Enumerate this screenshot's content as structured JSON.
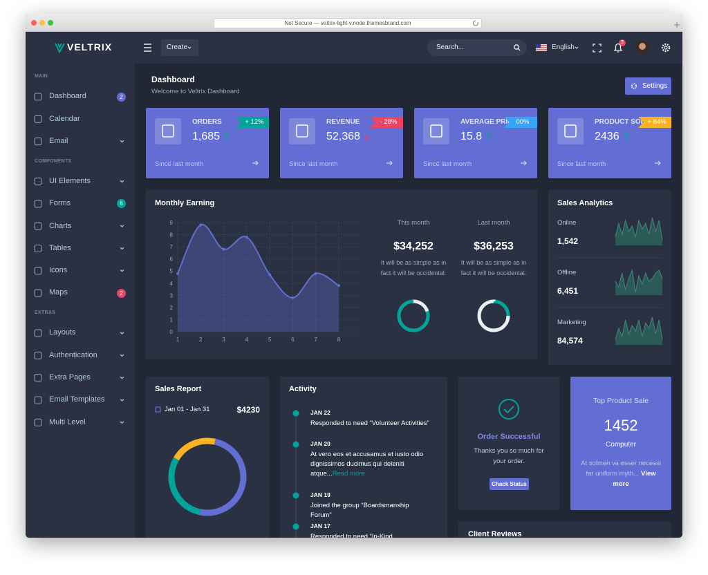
{
  "browser": {
    "address": "Not Secure — veltrix-light-v.node.themesbrand.com"
  },
  "brand": "VELTRIX",
  "topbar": {
    "create": "Create",
    "search": "Search...",
    "language": "English",
    "notifications": "3"
  },
  "sidebar": [
    {
      "heading": "MAIN",
      "items": [
        {
          "label": "Dashboard",
          "badge": "2",
          "badge_color": "#626ed4"
        },
        {
          "label": "Calendar"
        },
        {
          "label": "Email",
          "submenu": true
        }
      ]
    },
    {
      "heading": "COMPONENTS",
      "items": [
        {
          "label": "UI Elements",
          "submenu": true
        },
        {
          "label": "Forms",
          "badge": "6",
          "badge_color": "#02a499"
        },
        {
          "label": "Charts",
          "submenu": true
        },
        {
          "label": "Tables",
          "submenu": true
        },
        {
          "label": "Icons",
          "submenu": true
        },
        {
          "label": "Maps",
          "badge": "2",
          "badge_color": "#ec4561"
        }
      ]
    },
    {
      "heading": "EXTRAS",
      "items": [
        {
          "label": "Layouts",
          "submenu": true
        },
        {
          "label": "Authentication",
          "submenu": true
        },
        {
          "label": "Extra Pages",
          "submenu": true
        },
        {
          "label": "Email Templates",
          "submenu": true
        },
        {
          "label": "Multi Level",
          "submenu": true
        }
      ]
    }
  ],
  "page": {
    "title": "Dashboard",
    "subtitle": "Welcome to Veltrix Dashboard",
    "settings": "Settings"
  },
  "stats": [
    {
      "label": "ORDERS",
      "value": "1,685",
      "trend": "up",
      "change": "+ 12%",
      "change_color": "#02a499",
      "footer": "Since last month"
    },
    {
      "label": "REVENUE",
      "value": "52,368",
      "trend": "down",
      "change": "- 28%",
      "change_color": "#ec4561",
      "footer": "Since last month"
    },
    {
      "label": "AVERAGE PRICE",
      "value": "15.8",
      "trend": "up",
      "change": "00%",
      "change_color": "#38a4f8",
      "footer": "Since last month"
    },
    {
      "label": "PRODUCT SOLD",
      "value": "2436",
      "trend": "up",
      "change": "+ 84%",
      "change_color": "#f8b425",
      "footer": "Since last month"
    }
  ],
  "earning": {
    "title": "Monthly Earning",
    "summaries": [
      {
        "label": "This month",
        "value": "$34,252",
        "text": "It will be as simple as in fact it will be occidental."
      },
      {
        "label": "Last month",
        "value": "$36,253",
        "text": "It will be as simple as in fact it will be occidental."
      }
    ]
  },
  "analytics": {
    "title": "Sales Analytics",
    "rows": [
      {
        "label": "Online",
        "value": "1,542"
      },
      {
        "label": "Offline",
        "value": "6,451"
      },
      {
        "label": "Marketing",
        "value": "84,574"
      }
    ]
  },
  "sales_report": {
    "title": "Sales Report",
    "range": "Jan 01 - Jan 31",
    "total": "$4230"
  },
  "activity": {
    "title": "Activity",
    "items": [
      {
        "date": "JAN 22",
        "text": "Responded to need “Volunteer Activities”"
      },
      {
        "date": "JAN 20",
        "text": "At vero eos et accusamus et iusto odio dignissimos ducimus qui deleniti atque...",
        "link": "Read more"
      },
      {
        "date": "JAN 19",
        "text": "Joined the group “Boardsmanship Forum”"
      },
      {
        "date": "JAN 17",
        "text": "Responded to need “In-Kind Opportunity”"
      }
    ]
  },
  "order": {
    "title": "Order Successful",
    "text": "Thanks you so much for your order.",
    "button": "Chack Status"
  },
  "top_product": {
    "title": "Top Product Sale",
    "value": "1452",
    "name": "Computer",
    "text": "At solmen va esser necessi far uniform myth...",
    "link": "View more"
  },
  "reviews": {
    "title": "Client Reviews"
  },
  "chart_data": [
    {
      "type": "area",
      "x": [
        1,
        2,
        3,
        4,
        5,
        6,
        7,
        8
      ],
      "values": [
        4.8,
        8.8,
        6.8,
        7.8,
        4.7,
        2.8,
        4.8,
        3.8
      ],
      "xlim": [
        1,
        8
      ],
      "ylim": [
        0,
        9
      ],
      "xticks": [
        1,
        2,
        3,
        4,
        5,
        6,
        7,
        8
      ],
      "yticks": [
        0,
        1,
        2,
        3,
        4,
        5,
        6,
        7,
        8,
        9
      ],
      "grid": true,
      "smooth": true,
      "markers": true,
      "color": "#626ed4",
      "fill": "rgba(98,110,212,0.35)"
    },
    {
      "type": "area",
      "values": [
        3,
        8,
        4,
        9,
        5,
        7,
        3,
        9,
        6,
        8,
        4,
        10,
        5,
        9,
        2
      ],
      "ylim": [
        0,
        10
      ],
      "color": "#3d8a7c",
      "fill": "#2c5a57"
    },
    {
      "type": "area",
      "values": [
        5,
        3,
        8,
        2,
        6,
        9,
        1,
        7,
        4,
        8,
        5,
        6,
        8,
        9,
        6
      ],
      "ylim": [
        0,
        10
      ],
      "color": "#3d8a7c",
      "fill": "#2c5a57"
    },
    {
      "type": "area",
      "values": [
        2,
        6,
        3,
        9,
        4,
        7,
        5,
        9,
        3,
        8,
        6,
        10,
        4,
        9,
        2
      ],
      "ylim": [
        0,
        10
      ],
      "color": "#3d8a7c",
      "fill": "#2c5a57"
    },
    {
      "type": "pie",
      "values": [
        20,
        50,
        30
      ],
      "colors": [
        "#f8b425",
        "#626ed4",
        "#02a499"
      ]
    },
    {
      "type": "pie",
      "values": [
        20,
        80
      ],
      "colors": [
        "#ebeff2",
        "#02a499"
      ]
    },
    {
      "type": "pie",
      "values": [
        25,
        75
      ],
      "colors": [
        "#02a499",
        "#ebeff2"
      ]
    }
  ]
}
